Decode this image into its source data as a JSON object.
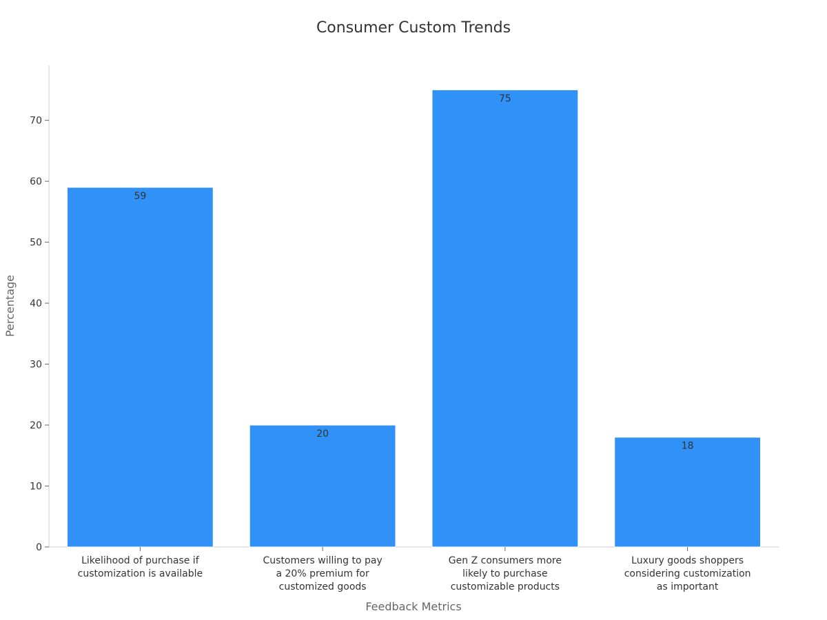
{
  "chart_data": {
    "type": "bar",
    "title": "Consumer Custom Trends",
    "xlabel": "Feedback Metrics",
    "ylabel": "Percentage",
    "categories": [
      [
        "Likelihood of purchase if",
        "customization is available"
      ],
      [
        "Customers willing to pay",
        "a 20% premium for",
        "customized goods"
      ],
      [
        "Gen Z consumers more",
        "likely to purchase",
        "customizable products"
      ],
      [
        "Luxury goods shoppers",
        "considering customization",
        "as important"
      ]
    ],
    "values": [
      59,
      20,
      75,
      18
    ],
    "ylim": [
      0,
      79
    ],
    "yticks": [
      0,
      10,
      20,
      30,
      40,
      50,
      60,
      70
    ],
    "bar_color": "#3091f7",
    "grid": false,
    "legend": "none"
  }
}
